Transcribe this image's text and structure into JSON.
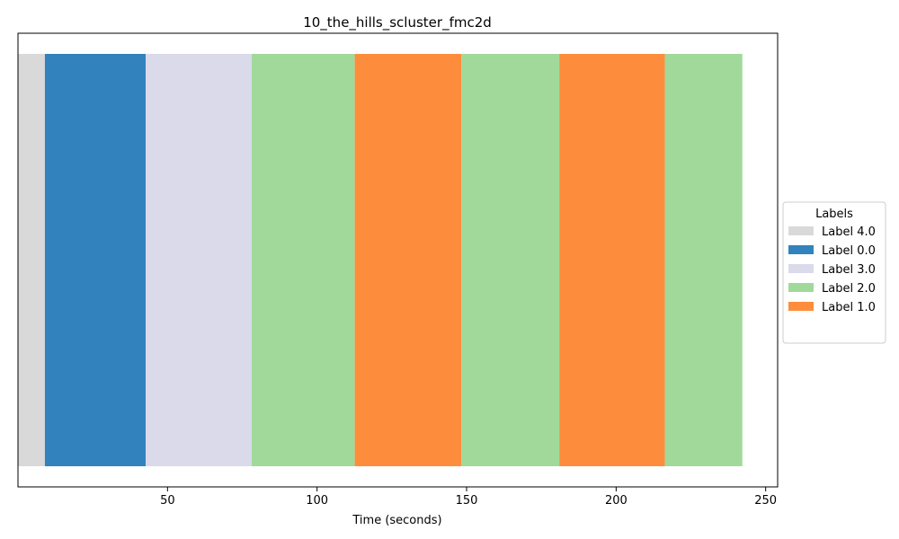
{
  "chart_data": {
    "type": "bar",
    "orientation": "horizontal-timeline",
    "title": "10_the_hills_scluster_fmc2d",
    "xlabel": "Time (seconds)",
    "ylabel": "",
    "xlim": [
      0,
      254
    ],
    "xticks": [
      50,
      100,
      150,
      200,
      250
    ],
    "grid": false,
    "legend": {
      "title": "Labels",
      "placement": "center-right-outside",
      "entries": [
        {
          "label": "Label 4.0",
          "color": "#d9d9d9"
        },
        {
          "label": "Label 0.0",
          "color": "#3182bd"
        },
        {
          "label": "Label 3.0",
          "color": "#dadaeb"
        },
        {
          "label": "Label 2.0",
          "color": "#a1d99b"
        },
        {
          "label": "Label 1.0",
          "color": "#fd8d3c"
        }
      ]
    },
    "segments": [
      {
        "label": "Label 4.0",
        "start": 0.0,
        "end": 9.0
      },
      {
        "label": "Label 0.0",
        "start": 9.0,
        "end": 42.7
      },
      {
        "label": "Label 3.0",
        "start": 42.7,
        "end": 78.1
      },
      {
        "label": "Label 2.0",
        "start": 78.1,
        "end": 112.6
      },
      {
        "label": "Label 1.0",
        "start": 112.6,
        "end": 148.2
      },
      {
        "label": "Label 2.0",
        "start": 148.2,
        "end": 181.0
      },
      {
        "label": "Label 1.0",
        "start": 181.0,
        "end": 216.3
      },
      {
        "label": "Label 2.0",
        "start": 216.3,
        "end": 242.2
      }
    ]
  }
}
